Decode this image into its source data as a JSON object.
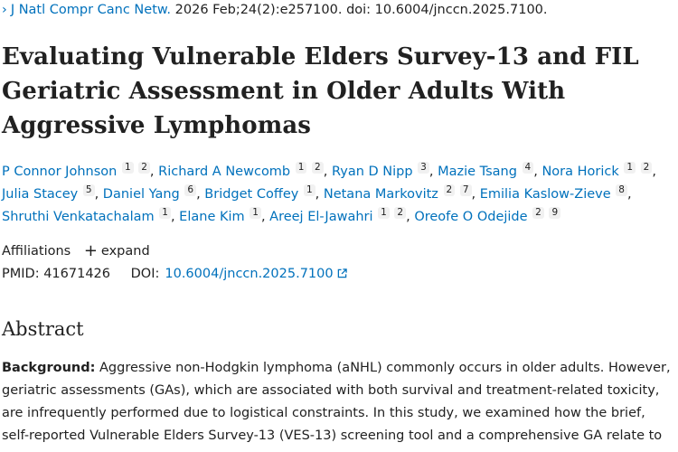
{
  "citation": {
    "journal": "J Natl Compr Canc Netw.",
    "details": "2026 Feb;24(2):e257100. doi: 10.6004/jnccn.2025.7100."
  },
  "title_lines": [
    "Evaluating Vulnerable Elders Survey-13 and FIL",
    "Geriatric Assessment in Older Adults With",
    "Aggressive Lymphomas"
  ],
  "authors": [
    {
      "name": "P Connor Johnson",
      "affiliations": [
        "1",
        "2"
      ]
    },
    {
      "name": "Richard A Newcomb",
      "affiliations": [
        "1",
        "2"
      ]
    },
    {
      "name": "Ryan D Nipp",
      "affiliations": [
        "3"
      ]
    },
    {
      "name": "Mazie Tsang",
      "affiliations": [
        "4"
      ]
    },
    {
      "name": "Nora Horick",
      "affiliations": [
        "1",
        "2"
      ]
    },
    {
      "name": "Julia Stacey",
      "affiliations": [
        "5"
      ]
    },
    {
      "name": "Daniel Yang",
      "affiliations": [
        "6"
      ]
    },
    {
      "name": "Bridget Coffey",
      "affiliations": [
        "1"
      ]
    },
    {
      "name": "Netana Markovitz",
      "affiliations": [
        "2",
        "7"
      ]
    },
    {
      "name": "Emilia Kaslow-Zieve",
      "affiliations": [
        "8"
      ]
    },
    {
      "name": "Shruthi Venkatachalam",
      "affiliations": [
        "1"
      ]
    },
    {
      "name": "Elane Kim",
      "affiliations": [
        "1"
      ]
    },
    {
      "name": "Areej El-Jawahri",
      "affiliations": [
        "1",
        "2"
      ]
    },
    {
      "name": "Oreofe O Odejide",
      "affiliations": [
        "2",
        "9"
      ]
    }
  ],
  "affiliations": {
    "label": "Affiliations",
    "expand_label": "expand"
  },
  "identifiers": {
    "pmid_label": "PMID:",
    "pmid": "41671426",
    "doi_label": "DOI:",
    "doi": "10.6004/jnccn.2025.7100"
  },
  "abstract": {
    "heading": "Abstract",
    "background_label": "Background:",
    "background_text": " Aggressive non-Hodgkin lymphoma (aNHL) commonly occurs in older adults. However, geriatric assessments (GAs), which are associated with both survival and treatment-related toxicity, are infrequently performed due to logistical constraints. In this study, we examined how the brief, self-reported Vulnerable Elders Survey-13 (VES-13) screening tool and a comprehensive GA relate to"
  },
  "colors": {
    "link": "#0071bc",
    "text": "#212121",
    "superscript_bg": "#f1f1f1"
  },
  "icons": {
    "journal_chevron": "chevron-right-icon",
    "expand": "plus-icon",
    "doi_external": "external-link-icon"
  }
}
